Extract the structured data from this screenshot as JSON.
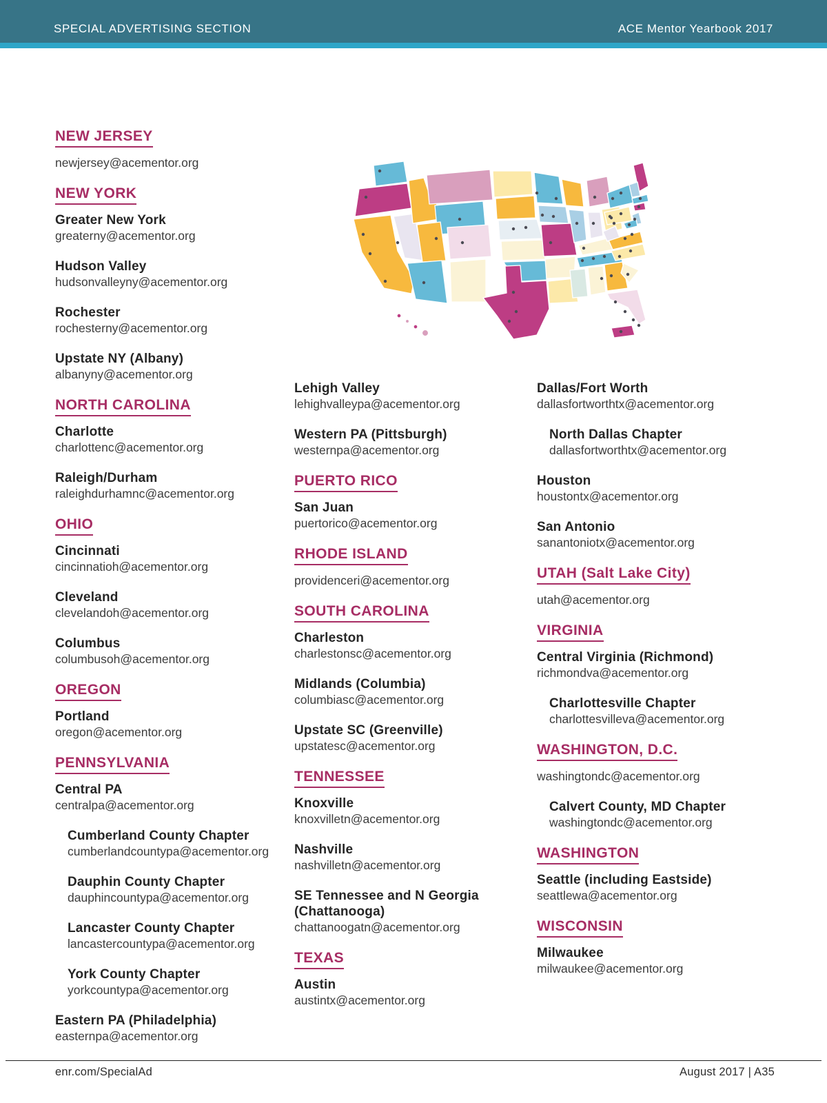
{
  "header": {
    "left_label": "SPECIAL ADVERTISING SECTION",
    "right_label": "ACE Mentor Yearbook 2017"
  },
  "footer": {
    "left_label": "enr.com/SpecialAd",
    "right_label": "August 2017  |  A35"
  },
  "colors": {
    "header_bar": "#377487",
    "header_stripe": "#2fa6c8",
    "state_heading": "#a72d64",
    "name_text": "#262626",
    "email_text": "#3c3c3c",
    "footer_text": "#2e2e2e",
    "footer_rule": "#222222"
  },
  "map": {
    "label": "map of ACE mentor chapter locations across the United States",
    "palette": {
      "magenta": "#bd3d84",
      "orange": "#f7b93e",
      "blue": "#66bad7",
      "lightblue": "#a9cfe5",
      "pink": "#d99fbd",
      "cream": "#fbf3d6",
      "paleyellow": "#fce9a9",
      "paleblue": "#e7eef3",
      "lavender": "#e9e5f0",
      "palepink": "#f2dce9",
      "paleteal": "#d9e9e3",
      "dot": "#4b4b54"
    }
  },
  "columns": [
    {
      "sections": [
        {
          "state": "NEW JERSEY",
          "entries": [
            {
              "name": null,
              "email": "newjersey@acementor.org",
              "indent": false
            }
          ]
        },
        {
          "state": "NEW YORK",
          "entries": [
            {
              "name": "Greater New York",
              "email": "greaterny@acementor.org",
              "indent": false
            },
            {
              "name": "Hudson Valley",
              "email": "hudsonvalleyny@acementor.org",
              "indent": false
            },
            {
              "name": "Rochester",
              "email": "rochesterny@acementor.org",
              "indent": false
            },
            {
              "name": "Upstate NY (Albany)",
              "email": "albanyny@acementor.org",
              "indent": false
            }
          ]
        },
        {
          "state": "NORTH CAROLINA",
          "entries": [
            {
              "name": "Charlotte",
              "email": "charlottenc@acementor.org",
              "indent": false
            },
            {
              "name": "Raleigh/Durham",
              "email": "raleighdurhamnc@acementor.org",
              "indent": false
            }
          ]
        },
        {
          "state": "OHIO",
          "entries": [
            {
              "name": "Cincinnati",
              "email": "cincinnatioh@acementor.org",
              "indent": false
            },
            {
              "name": "Cleveland",
              "email": "clevelandoh@acementor.org",
              "indent": false
            },
            {
              "name": "Columbus",
              "email": "columbusoh@acementor.org",
              "indent": false
            }
          ]
        },
        {
          "state": "OREGON",
          "entries": [
            {
              "name": "Portland",
              "email": "oregon@acementor.org",
              "indent": false
            }
          ]
        },
        {
          "state": "PENNSYLVANIA",
          "entries": [
            {
              "name": "Central PA",
              "email": "centralpa@acementor.org",
              "indent": false
            },
            {
              "name": "Cumberland County Chapter",
              "email": "cumberlandcountypa@acementor.org",
              "indent": true
            },
            {
              "name": "Dauphin County Chapter",
              "email": "dauphincountypa@acementor.org",
              "indent": true
            },
            {
              "name": "Lancaster County Chapter",
              "email": "lancastercountypa@acementor.org",
              "indent": true
            },
            {
              "name": "York County Chapter",
              "email": "yorkcountypa@acementor.org",
              "indent": true
            },
            {
              "name": "Eastern PA (Philadelphia)",
              "email": "easternpa@acementor.org",
              "indent": false
            }
          ]
        }
      ]
    },
    {
      "sections": [
        {
          "state": null,
          "entries": [
            {
              "name": "Lehigh Valley",
              "email": "lehighvalleypa@acementor.org",
              "indent": false
            },
            {
              "name": "Western PA (Pittsburgh)",
              "email": "westernpa@acementor.org",
              "indent": false
            }
          ]
        },
        {
          "state": "PUERTO RICO",
          "entries": [
            {
              "name": "San Juan",
              "email": "puertorico@acementor.org",
              "indent": false
            }
          ]
        },
        {
          "state": "RHODE ISLAND",
          "entries": [
            {
              "name": null,
              "email": "providenceri@acementor.org",
              "indent": false
            }
          ]
        },
        {
          "state": "SOUTH CAROLINA",
          "entries": [
            {
              "name": "Charleston",
              "email": "charlestonsc@acementor.org",
              "indent": false
            },
            {
              "name": "Midlands (Columbia)",
              "email": "columbiasc@acementor.org",
              "indent": false
            },
            {
              "name": "Upstate SC (Greenville)",
              "email": "upstatesc@acementor.org",
              "indent": false
            }
          ]
        },
        {
          "state": "TENNESSEE",
          "entries": [
            {
              "name": "Knoxville",
              "email": "knoxvilletn@acementor.org",
              "indent": false
            },
            {
              "name": "Nashville",
              "email": "nashvilletn@acementor.org",
              "indent": false
            },
            {
              "name": "SE Tennessee and N Georgia (Chattanooga)",
              "email": "chattanoogatn@acementor.org",
              "indent": false
            }
          ]
        },
        {
          "state": "TEXAS",
          "entries": [
            {
              "name": "Austin",
              "email": "austintx@acementor.org",
              "indent": false
            }
          ]
        }
      ]
    },
    {
      "sections": [
        {
          "state": null,
          "entries": [
            {
              "name": "Dallas/Fort Worth",
              "email": "dallasfortworthtx@acementor.org",
              "indent": false
            },
            {
              "name": "North Dallas Chapter",
              "email": "dallasfortworthtx@acementor.org",
              "indent": true
            },
            {
              "name": "Houston",
              "email": "houstontx@acementor.org",
              "indent": false
            },
            {
              "name": "San Antonio",
              "email": "sanantoniotx@acementor.org",
              "indent": false
            }
          ]
        },
        {
          "state": "UTAH (Salt Lake City)",
          "entries": [
            {
              "name": null,
              "email": "utah@acementor.org",
              "indent": false
            }
          ]
        },
        {
          "state": "VIRGINIA",
          "entries": [
            {
              "name": "Central Virginia (Richmond)",
              "email": "richmondva@acementor.org",
              "indent": false
            },
            {
              "name": "Charlottesville Chapter",
              "email": "charlottesvilleva@acementor.org",
              "indent": true
            }
          ]
        },
        {
          "state": "WASHINGTON, D.C.",
          "entries": [
            {
              "name": null,
              "email": "washingtondc@acementor.org",
              "indent": false
            },
            {
              "name": "Calvert County, MD Chapter",
              "email": "washingtondc@acementor.org",
              "indent": true
            }
          ]
        },
        {
          "state": "WASHINGTON",
          "entries": [
            {
              "name": "Seattle (including Eastside)",
              "email": "seattlewa@acementor.org",
              "indent": false
            }
          ]
        },
        {
          "state": "WISCONSIN",
          "entries": [
            {
              "name": "Milwaukee",
              "email": "milwaukee@acementor.org",
              "indent": false
            }
          ]
        }
      ]
    }
  ]
}
